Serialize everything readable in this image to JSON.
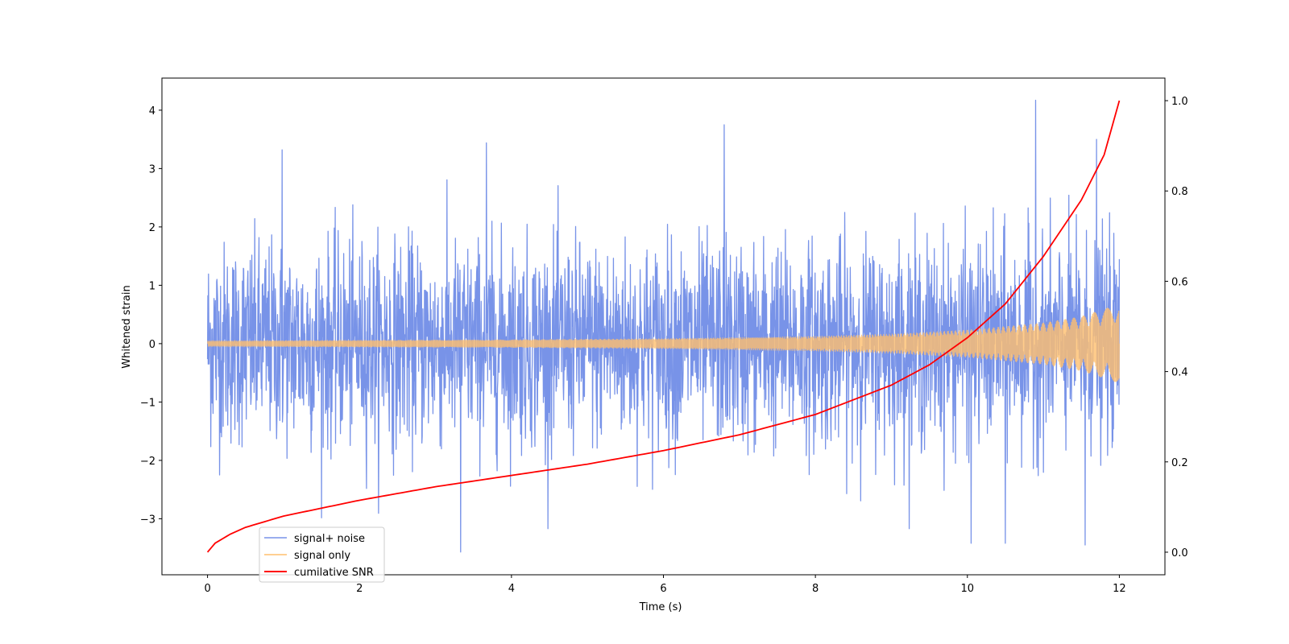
{
  "chart_data": {
    "type": "line",
    "xlabel": "Time (s)",
    "ylabel": "Whitened strain",
    "xlim": [
      -0.6,
      12.6
    ],
    "ylim": [
      -3.96,
      4.55
    ],
    "y2lim": [
      -0.05,
      1.05
    ],
    "x_ticks": [
      0,
      2,
      4,
      6,
      8,
      10,
      12
    ],
    "y_ticks": [
      -3,
      -2,
      -1,
      0,
      1,
      2,
      3,
      4
    ],
    "y2_ticks": [
      0.0,
      0.2,
      0.4,
      0.6,
      0.8,
      1.0
    ],
    "grid": false,
    "legend_position": "lower-left",
    "series": [
      {
        "name": "signal+ noise",
        "axis": "left",
        "color": "#7893e8",
        "kind": "noise-band",
        "x_range": [
          0,
          12
        ],
        "typical_range": [
          -1.8,
          1.8
        ],
        "min_value": -3.57,
        "max_value": 4.17,
        "peaks": [
          {
            "x": 0.98,
            "y": 3.32
          },
          {
            "x": 3.67,
            "y": 3.44
          },
          {
            "x": 6.8,
            "y": 3.75
          },
          {
            "x": 10.9,
            "y": 4.17
          },
          {
            "x": 11.7,
            "y": 3.5
          },
          {
            "x": 3.33,
            "y": -3.57
          },
          {
            "x": 11.55,
            "y": -3.45
          },
          {
            "x": 10.05,
            "y": -3.42
          },
          {
            "x": 10.5,
            "y": -3.42
          }
        ]
      },
      {
        "name": "signal only",
        "axis": "left",
        "color": "#ffbf6e",
        "kind": "chirp-envelope",
        "x": [
          0,
          2,
          4,
          6,
          8,
          9,
          10,
          11,
          11.5,
          12
        ],
        "amplitude": [
          0.05,
          0.06,
          0.07,
          0.09,
          0.13,
          0.17,
          0.24,
          0.36,
          0.47,
          0.68
        ]
      },
      {
        "name": "cumilative SNR",
        "axis": "right",
        "color": "#ff0000",
        "kind": "line",
        "x": [
          0,
          0.05,
          0.1,
          0.3,
          0.5,
          1,
          2,
          3,
          4,
          5,
          6,
          7,
          8,
          9,
          9.5,
          10,
          10.5,
          11,
          11.5,
          11.8,
          12
        ],
        "values": [
          0.0,
          0.01,
          0.02,
          0.04,
          0.055,
          0.08,
          0.115,
          0.145,
          0.17,
          0.195,
          0.225,
          0.26,
          0.305,
          0.37,
          0.415,
          0.475,
          0.55,
          0.655,
          0.78,
          0.88,
          1.0
        ]
      }
    ]
  }
}
